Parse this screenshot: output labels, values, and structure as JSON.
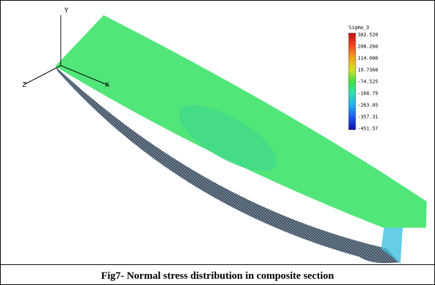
{
  "figure": {
    "axes": {
      "y": "Y",
      "z": "Z",
      "x": "X"
    },
    "legend": {
      "title": "Sigma_3",
      "labels": [
        "302.520",
        "208.260",
        "114.000",
        "19.7368",
        "-74.525",
        "-168.79",
        "-263.05",
        "-357.31",
        "-451.57"
      ]
    }
  },
  "caption": "Fig7- Normal stress distribution in composite section"
}
